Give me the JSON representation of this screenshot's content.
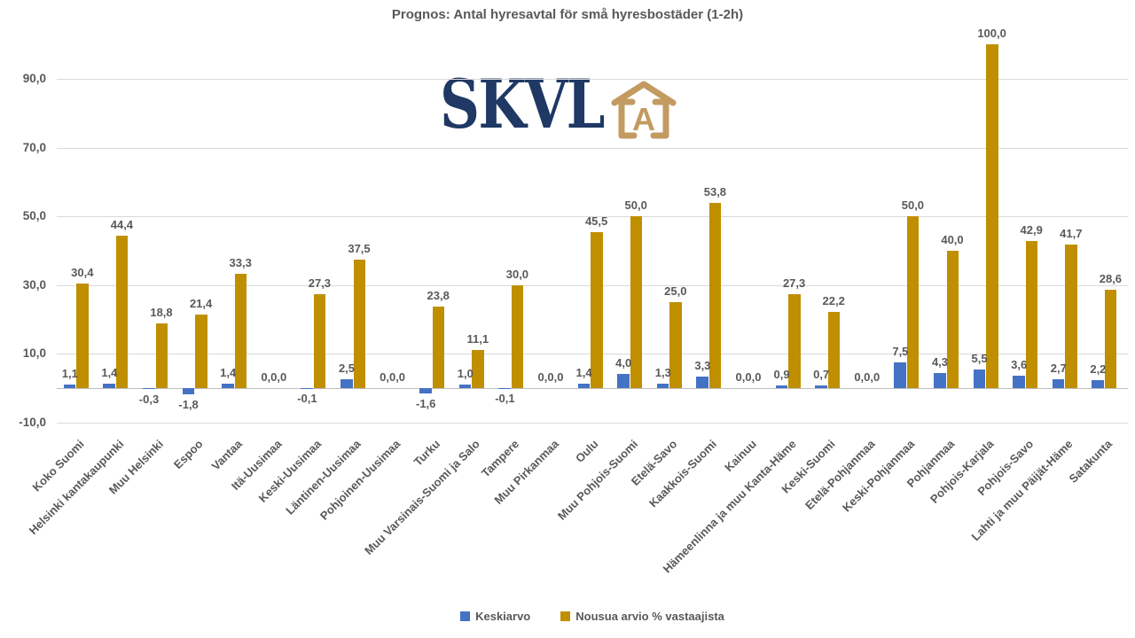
{
  "logo": {
    "text": "SKVL",
    "icon_letter": "A",
    "navy": "#1F3864",
    "gold": "#C39B61"
  },
  "chart_data": {
    "type": "bar",
    "title": "Prognos: Antal hyresavtal för små hyresbostäder (1-2h)",
    "categories": [
      "Koko Suomi",
      "Helsinki kantakaupunki",
      "Muu Helsinki",
      "Espoo",
      "Vantaa",
      "Itä-Uusimaa",
      "Keski-Uusimaa",
      "Läntinen-Uusimaa",
      "Pohjoinen-Uusimaa",
      "Turku",
      "Muu Varsinais-Suomi ja Salo",
      "Tampere",
      "Muu Pirkanmaa",
      "Oulu",
      "Muu Pohjois-Suomi",
      "Etelä-Savo",
      "Kaakkois-Suomi",
      "Kainuu",
      "Hämeenlinna ja muu Kanta-Häme",
      "Keski-Suomi",
      "Etelä-Pohjanmaa",
      "Keski-Pohjanmaa",
      "Pohjanmaa",
      "Pohjois-Karjala",
      "Pohjois-Savo",
      "Lahti ja muu Päijät-Häme",
      "Satakunta"
    ],
    "series": [
      {
        "name": "Keskiarvo",
        "color": "#4472C4",
        "values": [
          1.1,
          1.4,
          -0.3,
          -1.8,
          1.4,
          0.0,
          -0.1,
          2.5,
          0.0,
          -1.6,
          1.0,
          -0.1,
          0.0,
          1.4,
          4.0,
          1.3,
          3.3,
          0.0,
          0.9,
          0.7,
          0.0,
          7.5,
          4.3,
          5.5,
          3.6,
          2.7,
          2.2
        ]
      },
      {
        "name": "Nousua arvio % vastaajista",
        "color": "#BF8F00",
        "values": [
          30.4,
          44.4,
          18.8,
          21.4,
          33.3,
          0.0,
          27.3,
          37.5,
          0.0,
          23.8,
          11.1,
          30.0,
          0.0,
          45.5,
          50.0,
          25.0,
          53.8,
          0.0,
          27.3,
          22.2,
          0.0,
          50.0,
          40.0,
          100.0,
          42.9,
          41.7,
          28.6
        ]
      }
    ],
    "y_ticks": [
      90,
      70,
      50,
      30,
      10,
      -10
    ],
    "ylim": [
      -10,
      103
    ],
    "grid": true,
    "legend_position": "bottom",
    "decimal_separator": ",",
    "label_color": "#595959",
    "gridline_color": "#D9D9D9"
  }
}
